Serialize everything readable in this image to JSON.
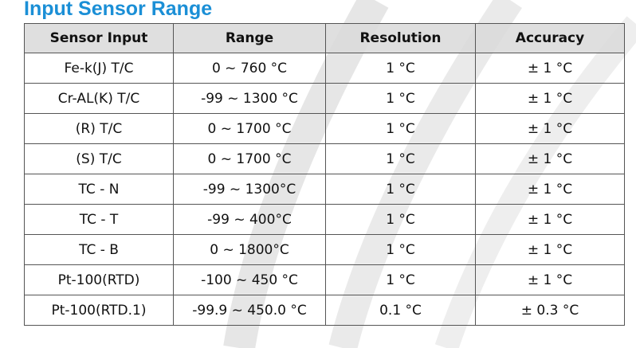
{
  "title": "Input Sensor Range",
  "table": {
    "headers": [
      "Sensor Input",
      "Range",
      "Resolution",
      "Accuracy"
    ],
    "rows": [
      [
        "Fe-k(J) T/C",
        "0 ~ 760 °C",
        "1 °C",
        "± 1 °C"
      ],
      [
        "Cr-AL(K) T/C",
        "-99 ~ 1300 °C",
        "1 °C",
        "± 1 °C"
      ],
      [
        "(R) T/C",
        "0 ~ 1700 °C",
        "1 °C",
        "± 1 °C"
      ],
      [
        "(S) T/C",
        "0 ~ 1700 °C",
        "1 °C",
        "± 1 °C"
      ],
      [
        "TC - N",
        "-99 ~ 1300°C",
        "1 °C",
        "± 1 °C"
      ],
      [
        "TC - T",
        "-99 ~ 400°C",
        "1 °C",
        "± 1 °C"
      ],
      [
        "TC - B",
        "0 ~ 1800°C",
        "1 °C",
        "± 1 °C"
      ],
      [
        "Pt-100(RTD)",
        "-100 ~ 450 °C",
        "1 °C",
        "± 1 °C"
      ],
      [
        "Pt-100(RTD.1)",
        "-99.9 ~ 450.0 °C",
        "0.1 °C",
        "± 0.3 °C"
      ]
    ]
  }
}
